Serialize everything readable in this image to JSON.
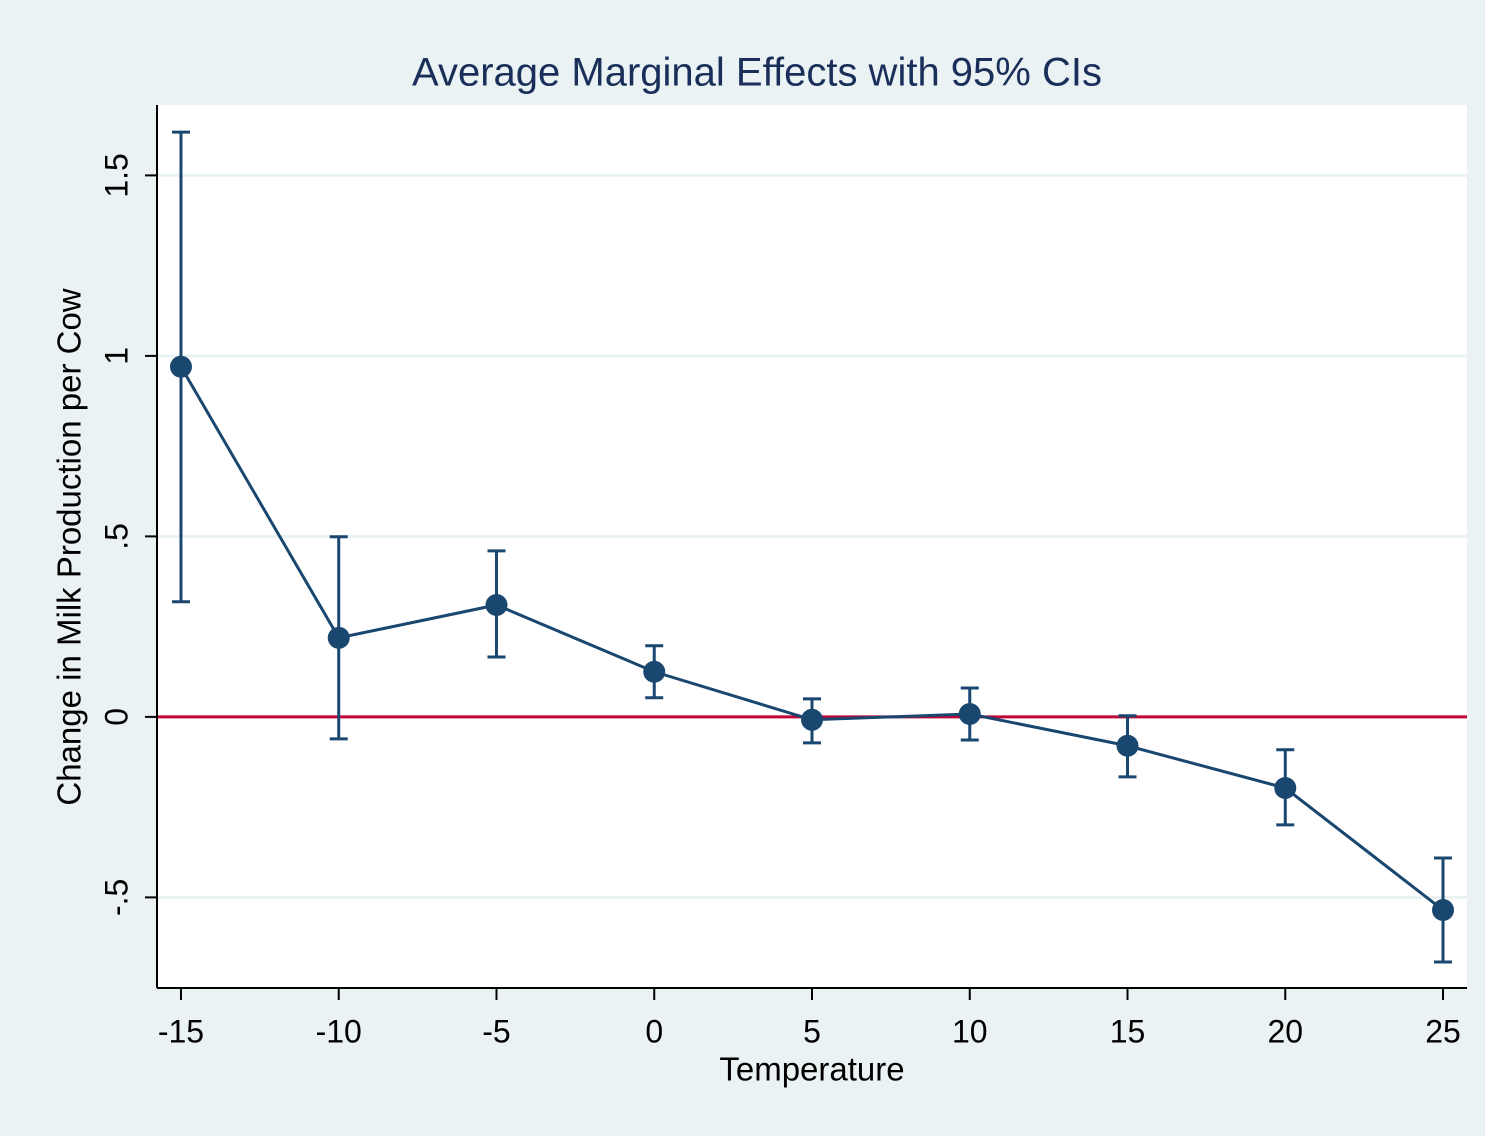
{
  "chart_data": {
    "type": "line",
    "title": "Average Marginal Effects with 95% CIs",
    "x_label": "Temperature",
    "y_label": "Change in Milk Production per Cow",
    "x": [
      -15,
      -10,
      -5,
      0,
      5,
      10,
      15,
      20,
      25
    ],
    "series": [
      {
        "color": "#1a476f",
        "values": [
          0.97,
          0.219,
          0.31,
          0.125,
          -0.008,
          0.008,
          -0.08,
          -0.197,
          -0.535
        ],
        "lower": [
          0.319,
          -0.061,
          0.166,
          0.053,
          -0.072,
          -0.064,
          -0.166,
          -0.299,
          -0.679
        ],
        "upper": [
          1.62,
          0.499,
          0.46,
          0.197,
          0.05,
          0.08,
          0.003,
          -0.091,
          -0.391
        ]
      }
    ],
    "reference_line": {
      "value": 0,
      "color": "#c10534"
    },
    "xlim": [
      -15.76,
      25.76
    ],
    "xticks": [
      -15,
      -10,
      -5,
      0,
      5,
      10,
      15,
      20,
      25
    ],
    "ylim": [
      -0.751,
      1.695
    ],
    "yticks": [
      {
        "value": -0.5,
        "label": "-.5"
      },
      0,
      {
        "value": 0.5,
        "label": ".5"
      },
      1,
      1.5
    ],
    "grid": true,
    "grid_color": "#eaf2f3"
  }
}
